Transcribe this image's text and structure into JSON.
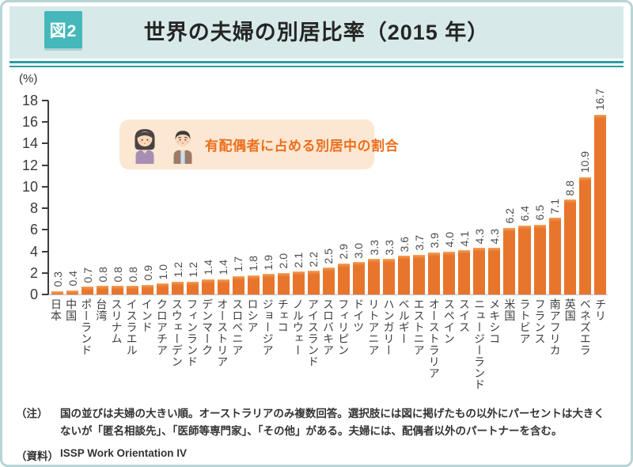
{
  "header": {
    "badge": "図2",
    "title": "世界の夫婦の別居比率（2015 年）"
  },
  "chart_data": {
    "type": "bar",
    "title": "世界の夫婦の別居比率（2015 年）",
    "unit_label": "(%)",
    "ylabel": "(%)",
    "ylim": [
      0,
      18
    ],
    "yticks": [
      0,
      2,
      4,
      6,
      8,
      10,
      12,
      14,
      16,
      18
    ],
    "grid": false,
    "legend_position": "upper-left-inside",
    "legend_label": "有配偶者に占める別居中の割合",
    "bar_color": "#E8752C",
    "bar_top_color": "#F4A866",
    "categories": [
      "日本",
      "中国",
      "ポーランド",
      "台湾",
      "スリナム",
      "イスラエル",
      "インド",
      "クロアチア",
      "スウェーデン",
      "フィンランド",
      "デンマーク",
      "オーストリア",
      "スロベニア",
      "ロシア",
      "ジョージア",
      "チェコ",
      "ノルウェー",
      "アイスランド",
      "スロバキア",
      "フィリピン",
      "ドイツ",
      "リトアニア",
      "ハンガリー",
      "ベルギー",
      "エストニア",
      "オーストラリア",
      "スペイン",
      "スイス",
      "ニュージーランド",
      "メキシコ",
      "米国",
      "ラトビア",
      "フランス",
      "南アフリカ",
      "英国",
      "ベネズエラ",
      "チリ"
    ],
    "values": [
      0.3,
      0.4,
      0.7,
      0.8,
      0.8,
      0.8,
      0.9,
      1.0,
      1.2,
      1.2,
      1.4,
      1.4,
      1.7,
      1.8,
      1.9,
      2.0,
      2.1,
      2.2,
      2.5,
      2.9,
      3.0,
      3.3,
      3.3,
      3.6,
      3.7,
      3.9,
      4.0,
      4.1,
      4.3,
      4.3,
      6.2,
      6.4,
      6.5,
      7.1,
      8.8,
      10.9,
      16.7
    ]
  },
  "colors": {
    "header_bg": "#D7EAE9",
    "badge_bg": "#44B8BB",
    "divider_teal": "#2A9EA4",
    "frame_border": "#B7D4D6",
    "legend_bg": "#FBE7D2",
    "legend_text": "#ED6F1E",
    "bar_orange": "#E8752C"
  },
  "notes": {
    "note_label": "（注）",
    "note_text": "国の並びは夫婦の大きい順。オーストラリアのみ複数回答。選択肢には図に掲げたもの以外にパーセントは大きくないが「匿名相談先」、「医師等専門家」、「その他」がある。夫婦には、配偶者以外のパートナーを含む。",
    "source_label": "（資料）",
    "source_text": "ISSP Work Orientation IV"
  }
}
